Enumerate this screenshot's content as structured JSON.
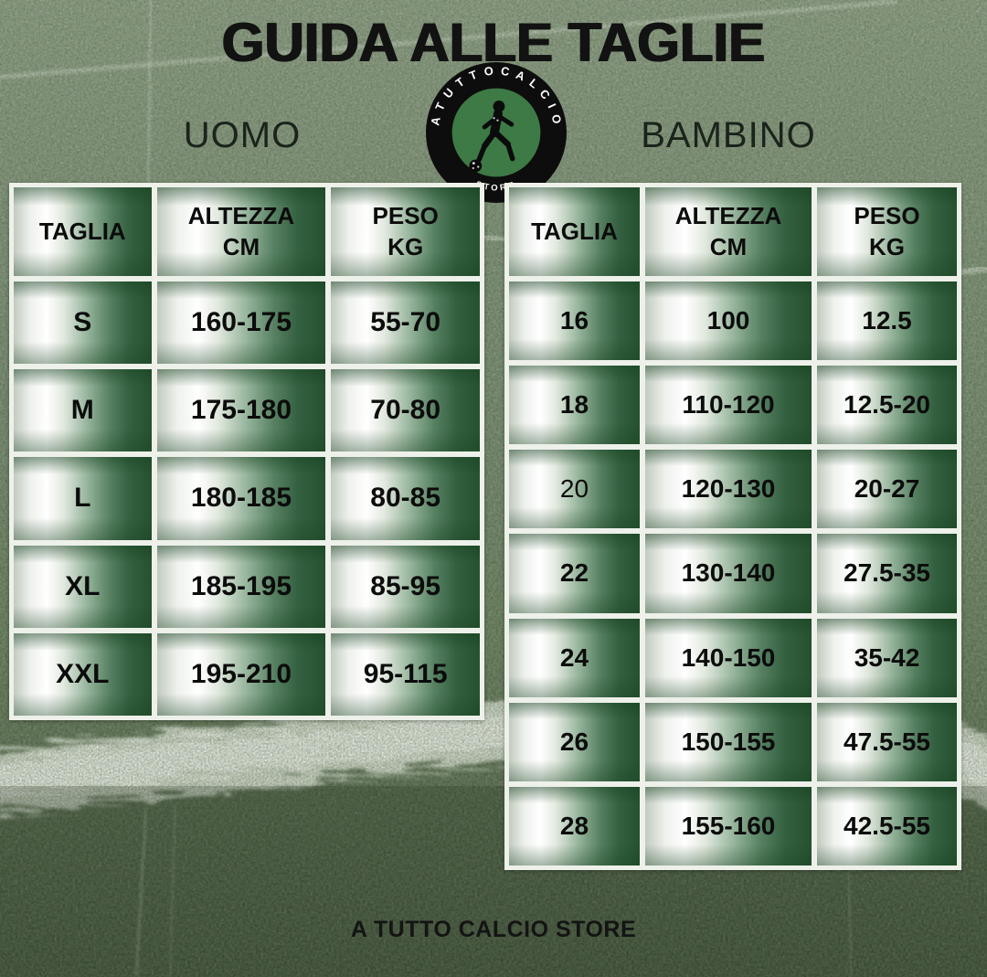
{
  "title": "GUIDA ALLE TAGLIE",
  "footer": "A TUTTO CALCIO STORE",
  "logo": {
    "ring_text": "A T U T T O C A L C I O",
    "bottom_text": "STORE",
    "ring_color": "#0d0d0d",
    "inner_color": "#3d7a45",
    "text_color": "#ffffff"
  },
  "colors": {
    "cell_dark_green": "#26512f",
    "cell_highlight": "#ffffff",
    "table_border": "#eef0ea",
    "text": "#0c0c0c",
    "field_light": "#8a9a84",
    "field_dark": "#3f4e38",
    "pitch_line": "#f4f6f0"
  },
  "tables": [
    {
      "id": "uomo",
      "label": "UOMO",
      "headers": [
        [
          "TAGLIA"
        ],
        [
          "ALTEZZA",
          "CM"
        ],
        [
          "PESO",
          "KG"
        ]
      ],
      "rows": [
        [
          "S",
          "160-175",
          "55-70"
        ],
        [
          "M",
          "175-180",
          "70-80"
        ],
        [
          "L",
          "180-185",
          "80-85"
        ],
        [
          "XL",
          "185-195",
          "85-95"
        ],
        [
          "XXL",
          "195-210",
          "95-115"
        ]
      ],
      "muted_rows": []
    },
    {
      "id": "bambino",
      "label": "BAMBINO",
      "headers": [
        [
          "TAGLIA"
        ],
        [
          "ALTEZZA",
          "CM"
        ],
        [
          "PESO",
          "KG"
        ]
      ],
      "rows": [
        [
          "16",
          "100",
          "12.5"
        ],
        [
          "18",
          "110-120",
          "12.5-20"
        ],
        [
          "20",
          "120-130",
          "20-27"
        ],
        [
          "22",
          "130-140",
          "27.5-35"
        ],
        [
          "24",
          "140-150",
          "35-42"
        ],
        [
          "26",
          "150-155",
          "47.5-55"
        ],
        [
          "28",
          "155-160",
          "42.5-55"
        ]
      ],
      "muted_rows": [
        2
      ]
    }
  ]
}
